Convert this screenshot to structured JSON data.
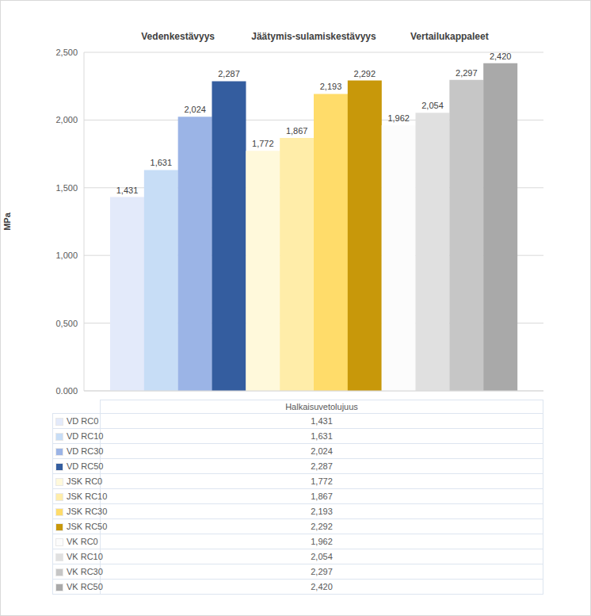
{
  "chart_data": {
    "type": "bar",
    "ylabel": "MPa",
    "categories": [
      "VD RC0",
      "VD RC10",
      "VD RC30",
      "VD RC50",
      "JSK RC0",
      "JSK RC10",
      "JSK RC30",
      "JSK RC50",
      "VK RC0",
      "VK RC10",
      "VK RC30",
      "VK RC50"
    ],
    "series": [
      {
        "name": "Halkaisuvetolujuus",
        "values": [
          1.431,
          1.631,
          2.024,
          2.287,
          1.772,
          1.867,
          2.193,
          2.292,
          1.962,
          2.054,
          2.297,
          2.42
        ],
        "value_labels": [
          "1,431",
          "1,631",
          "2,024",
          "2,287",
          "1,772",
          "1,867",
          "2,193",
          "2,292",
          "1,962",
          "2,054",
          "2,297",
          "2,420"
        ],
        "colors": [
          "#E3EAFA",
          "#C7DDF6",
          "#9BB4E6",
          "#345D9F",
          "#FFF9DB",
          "#FFEDA9",
          "#FFDC6A",
          "#C8980A",
          "#FCFCFC",
          "#E0E0E0",
          "#C6C6C6",
          "#A9A9A9"
        ]
      }
    ],
    "groups": [
      {
        "label": "Vedenkestävyys",
        "categories": [
          "VD RC0",
          "VD RC10",
          "VD RC30",
          "VD RC50"
        ]
      },
      {
        "label": "Jäätymis-sulamiskestävyys",
        "categories": [
          "JSK RC0",
          "JSK RC10",
          "JSK RC30",
          "JSK RC50"
        ]
      },
      {
        "label": "Vertailukappaleet",
        "categories": [
          "VK RC0",
          "VK RC10",
          "VK RC30",
          "VK RC50"
        ]
      }
    ],
    "ylim": [
      0,
      2.5
    ],
    "yticks": [
      {
        "value": 0,
        "label": "0,000"
      },
      {
        "value": 0.5,
        "label": "0,500"
      },
      {
        "value": 1,
        "label": "1,000"
      },
      {
        "value": 1.5,
        "label": "1,500"
      },
      {
        "value": 2,
        "label": "2,000"
      },
      {
        "value": 2.5,
        "label": "2,500"
      }
    ],
    "grid": true,
    "data_labels": true,
    "tick_labels": "y"
  }
}
